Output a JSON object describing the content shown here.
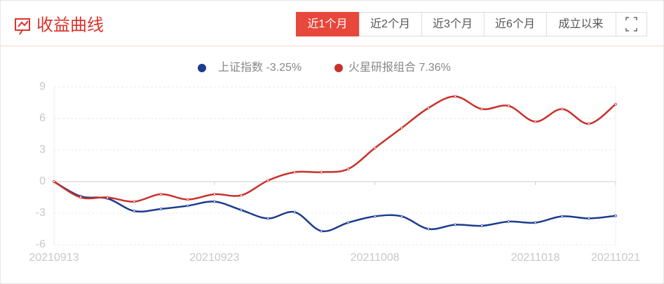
{
  "header": {
    "title": "收益曲线",
    "tabs": [
      "近1个月",
      "近2个月",
      "近3个月",
      "近6个月",
      "成立以来"
    ],
    "active_tab": 0
  },
  "chart_data": {
    "type": "line",
    "categories": [
      "20210913",
      null,
      null,
      null,
      null,
      null,
      "20210923",
      null,
      null,
      null,
      null,
      null,
      "20211008",
      null,
      null,
      null,
      null,
      null,
      "20211018",
      null,
      null,
      "20211021"
    ],
    "series": [
      {
        "name": "上证指数 -3.25%",
        "color": "#1b3d8f",
        "values": [
          0,
          -1.4,
          -1.6,
          -2.8,
          -2.6,
          -2.3,
          -1.9,
          -2.7,
          -3.5,
          -2.9,
          -4.7,
          -3.9,
          -3.3,
          -3.3,
          -4.5,
          -4.1,
          -4.2,
          -3.8,
          -3.9,
          -3.3,
          -3.5,
          -3.25
        ]
      },
      {
        "name": "火星研报组合 7.36%",
        "color": "#c9302a",
        "values": [
          0,
          -1.5,
          -1.5,
          -1.9,
          -1.2,
          -1.7,
          -1.2,
          -1.3,
          0.1,
          0.9,
          0.9,
          1.2,
          3.2,
          5.1,
          7.0,
          8.1,
          6.9,
          7.2,
          5.7,
          6.9,
          5.5,
          7.36
        ]
      }
    ],
    "ylim": [
      -6,
      9
    ],
    "yticks": [
      -6,
      -3,
      0,
      3,
      6,
      9
    ],
    "grid": true
  }
}
